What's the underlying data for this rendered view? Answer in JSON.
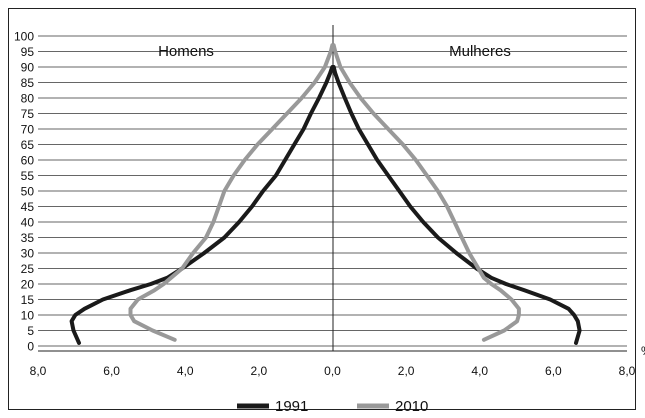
{
  "chart_data": {
    "type": "line",
    "subtype": "population-pyramid",
    "title": "",
    "left_label": "Homens",
    "right_label": "Mulheres",
    "xlabel": "%",
    "ylabel": "",
    "x_ticks": [
      "8,0",
      "6,0",
      "4,0",
      "2,0",
      "0,0",
      "2,0",
      "4,0",
      "6,0",
      "8,0"
    ],
    "y_ticks": [
      "0",
      "5",
      "10",
      "15",
      "20",
      "25",
      "30",
      "35",
      "40",
      "45",
      "50",
      "55",
      "60",
      "65",
      "70",
      "75",
      "80",
      "85",
      "90",
      "95",
      "100"
    ],
    "xlim_each_side": [
      0,
      8
    ],
    "ylim": [
      0,
      100
    ],
    "grid": "horizontal",
    "legend_position": "bottom",
    "series": [
      {
        "name": "1991",
        "color": "#1a1a1a",
        "ages": [
          1,
          5,
          8,
          10,
          12,
          15,
          18,
          20,
          22,
          25,
          30,
          35,
          40,
          45,
          50,
          55,
          60,
          65,
          70,
          75,
          80,
          85,
          88,
          90
        ],
        "homens": [
          6.9,
          7.05,
          7.1,
          7.0,
          6.75,
          6.25,
          5.5,
          4.95,
          4.5,
          4.1,
          3.5,
          2.95,
          2.55,
          2.2,
          1.9,
          1.55,
          1.3,
          1.05,
          0.8,
          0.6,
          0.38,
          0.18,
          0.08,
          0.02
        ],
        "mulheres": [
          6.6,
          6.7,
          6.65,
          6.55,
          6.4,
          5.9,
          5.2,
          4.7,
          4.3,
          3.9,
          3.35,
          2.85,
          2.45,
          2.1,
          1.8,
          1.5,
          1.2,
          0.95,
          0.7,
          0.5,
          0.32,
          0.15,
          0.06,
          0.02
        ]
      },
      {
        "name": "2010",
        "color": "#999999",
        "ages": [
          2,
          5,
          8,
          10,
          12,
          15,
          18,
          20,
          22,
          25,
          30,
          35,
          40,
          45,
          50,
          55,
          60,
          65,
          70,
          75,
          80,
          85,
          90,
          95,
          97
        ],
        "homens": [
          4.3,
          4.9,
          5.4,
          5.5,
          5.5,
          5.3,
          4.85,
          4.6,
          4.4,
          4.1,
          3.8,
          3.45,
          3.25,
          3.1,
          2.95,
          2.7,
          2.4,
          2.05,
          1.65,
          1.25,
          0.85,
          0.5,
          0.22,
          0.06,
          0.02
        ],
        "mulheres": [
          4.1,
          4.65,
          5.0,
          5.05,
          5.05,
          4.85,
          4.55,
          4.3,
          4.1,
          3.95,
          3.7,
          3.5,
          3.3,
          3.1,
          2.85,
          2.55,
          2.25,
          1.9,
          1.5,
          1.1,
          0.75,
          0.45,
          0.2,
          0.06,
          0.02
        ]
      }
    ]
  }
}
